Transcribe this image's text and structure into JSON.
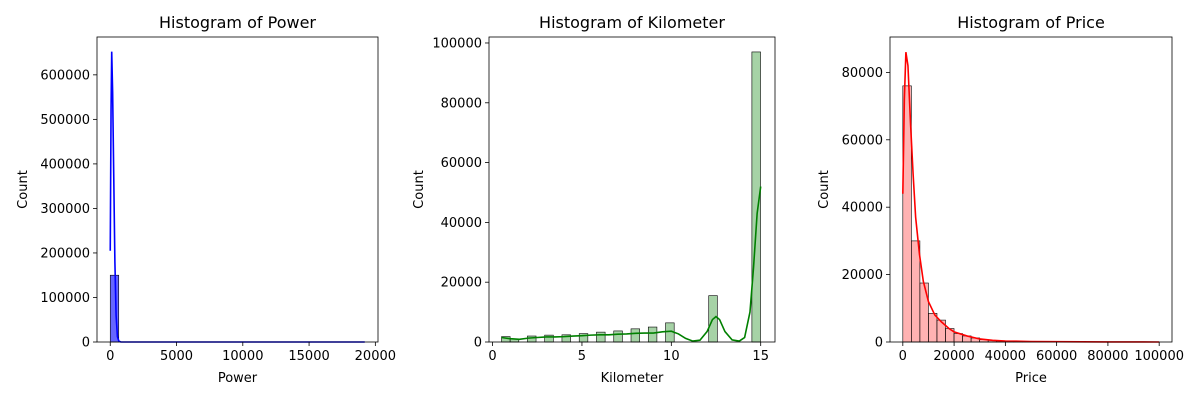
{
  "chart_data": [
    {
      "type": "histogram",
      "title": "Histogram of Power",
      "xlabel": "Power",
      "ylabel": "Count",
      "xlim": [
        -1000,
        20200
      ],
      "ylim": [
        0,
        685000
      ],
      "xticks": [
        0,
        5000,
        10000,
        15000,
        20000
      ],
      "yticks": [
        0,
        100000,
        200000,
        300000,
        400000,
        500000,
        600000
      ],
      "bar_color": "#0000ff",
      "kde_color": "#0000ff",
      "bin_start": 0,
      "bin_width": 640,
      "counts": [
        150000,
        0,
        0,
        0,
        0,
        0,
        0,
        0,
        0,
        0,
        0,
        0,
        0,
        0,
        0,
        0,
        0,
        0,
        0,
        0,
        0,
        0,
        0,
        0,
        0,
        0,
        0,
        0,
        0,
        0
      ],
      "kde": [
        [
          0,
          205000
        ],
        [
          60,
          520000
        ],
        [
          110,
          652000
        ],
        [
          180,
          560000
        ],
        [
          260,
          380000
        ],
        [
          350,
          180000
        ],
        [
          440,
          60000
        ],
        [
          540,
          12000
        ],
        [
          650,
          2000
        ],
        [
          800,
          0
        ],
        [
          19200,
          0
        ]
      ]
    },
    {
      "type": "histogram",
      "title": "Histogram of Kilometer",
      "xlabel": "Kilometer",
      "ylabel": "Count",
      "xlim": [
        -0.2,
        15.8
      ],
      "ylim": [
        0,
        102000
      ],
      "xticks": [
        0,
        5,
        10,
        15
      ],
      "yticks": [
        0,
        20000,
        40000,
        60000,
        80000,
        100000
      ],
      "bar_color": "#6ab46a",
      "kde_color": "#008000",
      "bin_start": 0.5,
      "bin_width": 0.483,
      "counts": [
        1800,
        1000,
        0,
        2000,
        0,
        2300,
        0,
        2400,
        0,
        2800,
        0,
        3300,
        0,
        3700,
        0,
        4400,
        0,
        5000,
        0,
        6400,
        0,
        0,
        0,
        0,
        15500,
        0,
        0,
        0,
        0,
        97000
      ],
      "kde": [
        [
          0.5,
          1500
        ],
        [
          1.0,
          1100
        ],
        [
          1.5,
          900
        ],
        [
          2.0,
          1300
        ],
        [
          2.5,
          1500
        ],
        [
          3.0,
          1700
        ],
        [
          3.5,
          1700
        ],
        [
          4.0,
          1800
        ],
        [
          4.5,
          2000
        ],
        [
          5.0,
          2100
        ],
        [
          5.5,
          2300
        ],
        [
          6.0,
          2400
        ],
        [
          6.5,
          2400
        ],
        [
          7.0,
          2600
        ],
        [
          7.5,
          2700
        ],
        [
          8.0,
          2900
        ],
        [
          8.5,
          3000
        ],
        [
          9.0,
          3000
        ],
        [
          9.5,
          3400
        ],
        [
          10.0,
          3600
        ],
        [
          10.4,
          2700
        ],
        [
          10.8,
          1200
        ],
        [
          11.2,
          300
        ],
        [
          11.6,
          600
        ],
        [
          12.0,
          3500
        ],
        [
          12.3,
          7500
        ],
        [
          12.5,
          8500
        ],
        [
          12.7,
          7500
        ],
        [
          13.0,
          3500
        ],
        [
          13.4,
          700
        ],
        [
          13.8,
          300
        ],
        [
          14.1,
          1500
        ],
        [
          14.4,
          10000
        ],
        [
          14.6,
          25000
        ],
        [
          14.8,
          43000
        ],
        [
          15.0,
          52000
        ]
      ]
    },
    {
      "type": "histogram",
      "title": "Histogram of Price",
      "xlabel": "Price",
      "ylabel": "Count",
      "xlim": [
        -5000,
        105000
      ],
      "ylim": [
        0,
        90500
      ],
      "xticks": [
        0,
        20000,
        40000,
        60000,
        80000,
        100000
      ],
      "yticks": [
        0,
        20000,
        40000,
        60000,
        80000
      ],
      "bar_color": "#ff7f7f",
      "kde_color": "#ff0000",
      "bin_start": 0,
      "bin_width": 3330,
      "counts": [
        76000,
        30000,
        17500,
        8500,
        6500,
        4000,
        2500,
        1800,
        1200,
        700,
        500,
        350,
        250,
        150,
        100,
        80,
        60,
        40,
        30,
        20,
        15,
        10,
        8,
        6,
        5,
        4,
        3,
        2,
        2,
        1
      ],
      "kde": [
        [
          0,
          44000
        ],
        [
          600,
          72000
        ],
        [
          1200,
          86000
        ],
        [
          2000,
          82000
        ],
        [
          3000,
          65000
        ],
        [
          4000,
          50000
        ],
        [
          5000,
          37000
        ],
        [
          6500,
          26000
        ],
        [
          8000,
          18000
        ],
        [
          10000,
          12000
        ],
        [
          12500,
          8000
        ],
        [
          15000,
          6000
        ],
        [
          18000,
          4000
        ],
        [
          20000,
          3000
        ],
        [
          25000,
          1800
        ],
        [
          30000,
          900
        ],
        [
          35000,
          500
        ],
        [
          40000,
          300
        ],
        [
          50000,
          150
        ],
        [
          60000,
          80
        ],
        [
          80000,
          30
        ],
        [
          100000,
          0
        ]
      ]
    }
  ]
}
